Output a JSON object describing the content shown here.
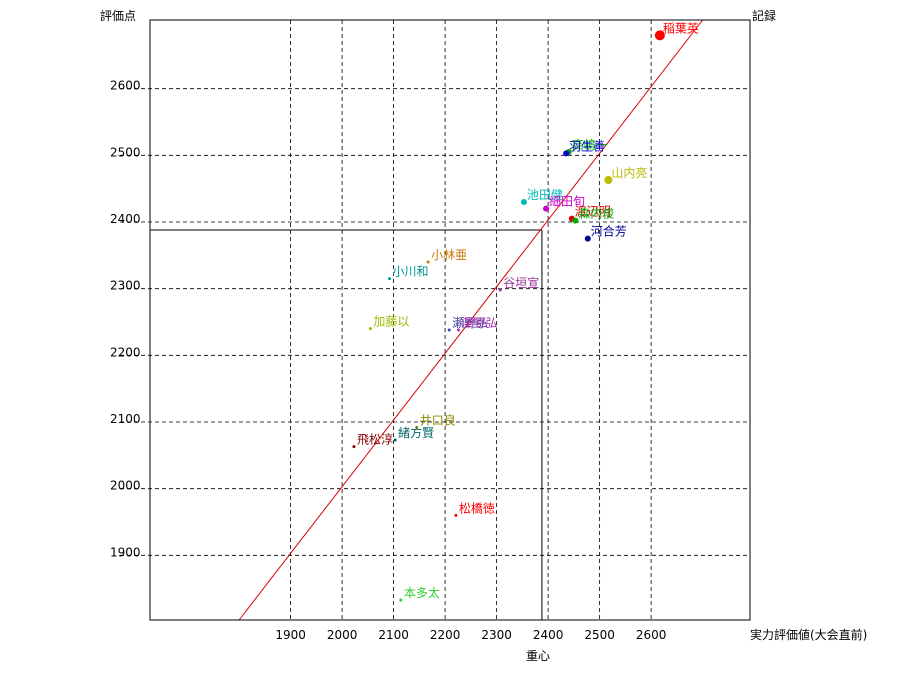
{
  "chart_data": {
    "type": "scatter",
    "title": "",
    "xlabel_right": "実力評価値(大会直前)",
    "xlabel_bottom": "重心",
    "ylabel_left": "評価点",
    "ylabel_right": "記録",
    "xlim": [
      1627,
      2792
    ],
    "ylim": [
      1803,
      2703
    ],
    "x_ticks": [
      1900,
      2000,
      2100,
      2200,
      2300,
      2400,
      2500,
      2600
    ],
    "y_ticks": [
      1900,
      2000,
      2100,
      2200,
      2300,
      2400,
      2500,
      2600
    ],
    "grid": true,
    "grid_style": "dashed",
    "centroid": {
      "x": 2388,
      "y": 2388
    },
    "diagonal_line": {
      "color": "#dd0000",
      "from": [
        1800,
        1803
      ],
      "to": [
        2700,
        2703
      ]
    },
    "series": [
      {
        "name": "稲葉英",
        "x": 2617,
        "y": 2680,
        "color": "#ff0000",
        "size": 5
      },
      {
        "name": "高嶋一",
        "x": 2440,
        "y": 2505,
        "color": "#00aa00",
        "size": 3
      },
      {
        "name": "羽生善",
        "x": 2435,
        "y": 2503,
        "color": "#0000cc",
        "size": 3
      },
      {
        "name": "山内亮",
        "x": 2517,
        "y": 2463,
        "color": "#bbbb00",
        "size": 4
      },
      {
        "name": "池田健",
        "x": 2353,
        "y": 2430,
        "color": "#00bbbb",
        "size": 3
      },
      {
        "name": "細田旬",
        "x": 2396,
        "y": 2420,
        "color": "#cc00cc",
        "size": 3
      },
      {
        "name": "渡辺明",
        "x": 2446,
        "y": 2405,
        "color": "#dd0000",
        "size": 3
      },
      {
        "name": "森内俊",
        "x": 2453,
        "y": 2402,
        "color": "#00aa00",
        "size": 3
      },
      {
        "name": "河合芳",
        "x": 2477,
        "y": 2375,
        "color": "#000099",
        "size": 3
      },
      {
        "name": "小林亜",
        "x": 2167,
        "y": 2340,
        "color": "#cc7700",
        "size": 1.5
      },
      {
        "name": "小川和",
        "x": 2092,
        "y": 2315,
        "color": "#009999",
        "size": 1.5
      },
      {
        "name": "谷垣宣",
        "x": 2307,
        "y": 2298,
        "color": "#993399",
        "size": 1.5
      },
      {
        "name": "加藤以",
        "x": 2055,
        "y": 2240,
        "color": "#99bb00",
        "size": 1.5
      },
      {
        "name": "瀬野弘",
        "x": 2208,
        "y": 2238,
        "color": "#4444aa",
        "size": 1.5
      },
      {
        "name": "澤野弘",
        "x": 2226,
        "y": 2238,
        "color": "#aa33aa",
        "size": 1.5
      },
      {
        "name": "井口良",
        "x": 2145,
        "y": 2092,
        "color": "#888800",
        "size": 1.5
      },
      {
        "name": "飛松淳",
        "x": 2023,
        "y": 2063,
        "color": "#880000",
        "size": 1.5
      },
      {
        "name": "緒方賢",
        "x": 2103,
        "y": 2073,
        "color": "#006666",
        "size": 1.5
      },
      {
        "name": "松橋徳",
        "x": 2221,
        "y": 1960,
        "color": "#ff0000",
        "size": 1.5
      },
      {
        "name": "本多太",
        "x": 2114,
        "y": 1833,
        "color": "#33cc33",
        "size": 1.5
      }
    ]
  }
}
